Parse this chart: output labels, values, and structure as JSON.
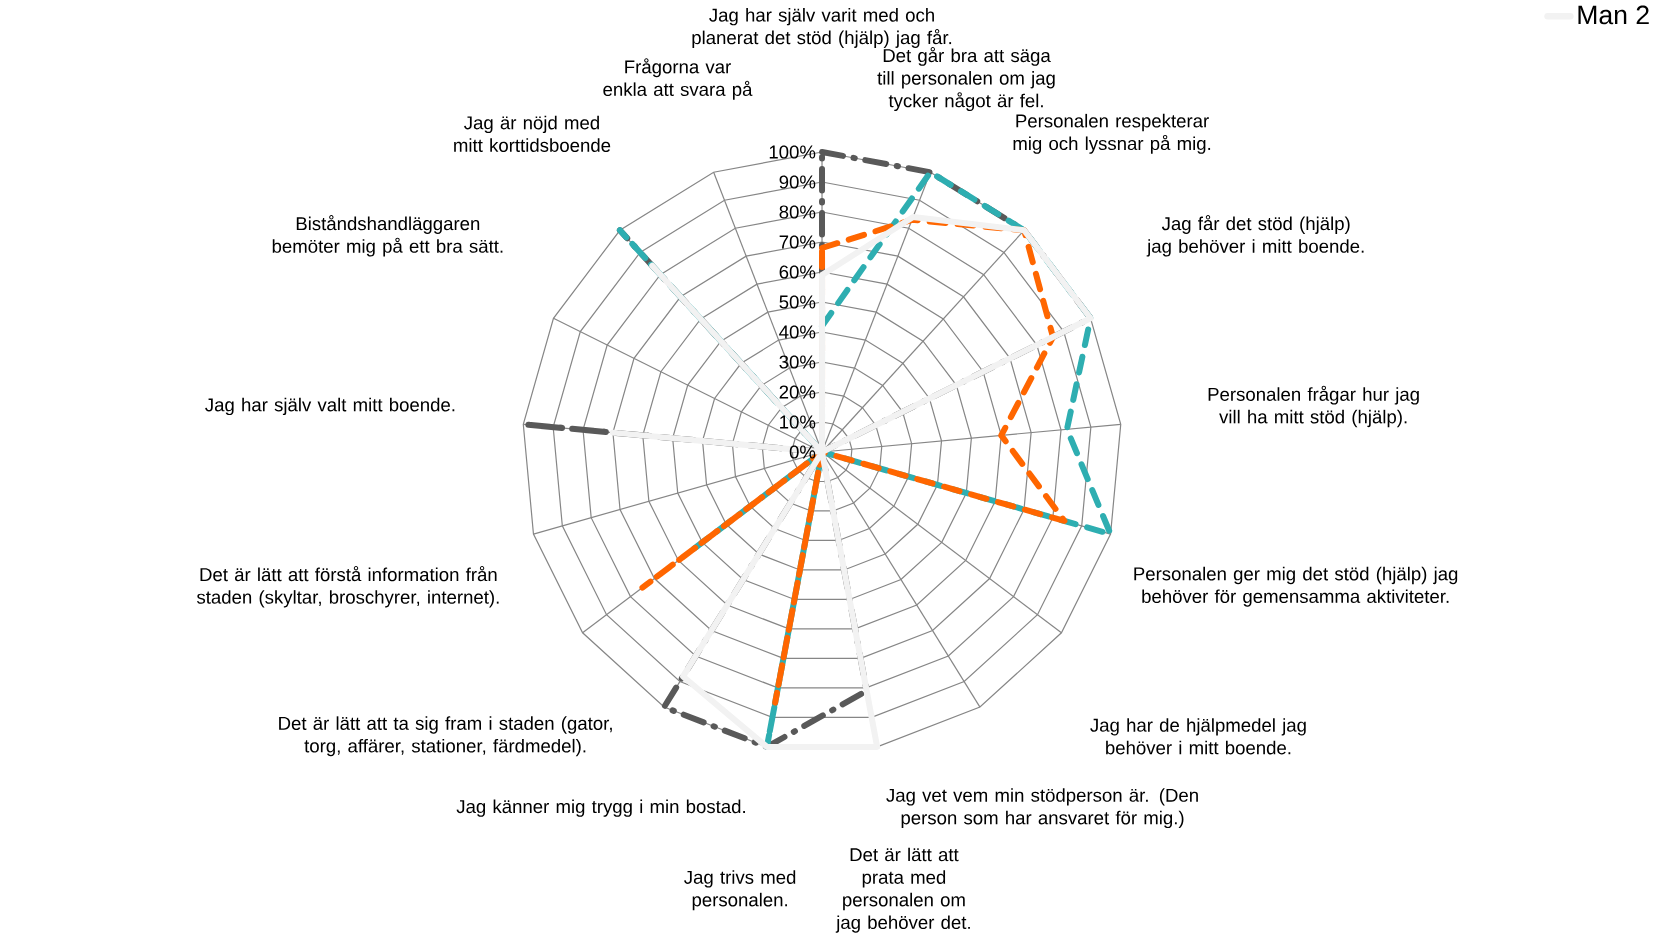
{
  "chart_data": {
    "type": "radar",
    "categories": [
      "Jag har själv varit med och planerat det stöd (hjälp) jag får.",
      "Det går bra att säga till personalen om jag tycker något är fel.",
      "Personalen respekterar mig och lyssnar på mig.",
      "Jag får det stöd (hjälp) jag behöver i mitt boende.",
      "Personalen frågar hur jag vill ha mitt stöd (hjälp).",
      "Personalen ger mig det stöd (hjälp) jag behöver för gemensamma aktiviteter.",
      "Jag har de hjälpmedel jag behöver i mitt boende.",
      "Jag vet vem min stödperson är. (Den person som har ansvaret för mig.)",
      "Det är lätt att prata med personalen om jag behöver det.",
      "Jag trivs med personalen.",
      "Jag känner mig trygg i min bostad.",
      "Det är lätt att ta sig fram i staden (gator, torg, affärer, stationer, färdmedel).",
      "Det är lätt att förstå information från staden (skyltar, broschyrer, internet).",
      "Jag har själv valt mitt boende.",
      "Biståndshandläggaren bemöter mig på ett bra sätt.",
      "Jag är nöjd med mitt korttidsboende",
      "Frågorna var enkla att svara på"
    ],
    "series": [
      {
        "color": "#595959",
        "line_style": "dashdot",
        "values": [
          100,
          100,
          100,
          100,
          0,
          0,
          0,
          0,
          81,
          100,
          100,
          0,
          0,
          100,
          0,
          100,
          0
        ]
      },
      {
        "color": "#2eaeb1",
        "line_style": "dashed",
        "values": [
          42,
          100,
          100,
          100,
          82,
          100,
          0,
          0,
          0,
          100,
          0,
          55,
          0,
          0,
          0,
          100,
          0
        ]
      },
      {
        "color": "#ff6600",
        "line_style": "dashed",
        "values": [
          68,
          83,
          100,
          86,
          60,
          84,
          0,
          0,
          0,
          85,
          0,
          75,
          0,
          0,
          0,
          0,
          0
        ]
      },
      {
        "name": "Man 2",
        "color": "#f2f2f2",
        "line_style": "solid",
        "values": [
          59,
          84,
          100,
          100,
          0,
          0,
          0,
          0,
          100,
          100,
          88,
          0,
          0,
          70,
          0,
          84,
          0
        ]
      }
    ],
    "ylim": [
      0,
      100
    ],
    "yticks": [
      {
        "value": 0,
        "label": "0%"
      },
      {
        "value": 10,
        "label": "10%"
      },
      {
        "value": 20,
        "label": "20%"
      },
      {
        "value": 30,
        "label": "30%"
      },
      {
        "value": 40,
        "label": "40%"
      },
      {
        "value": 50,
        "label": "50%"
      },
      {
        "value": 60,
        "label": "60%"
      },
      {
        "value": 70,
        "label": "70%"
      },
      {
        "value": 80,
        "label": "80%"
      },
      {
        "value": 90,
        "label": "90%"
      },
      {
        "value": 100,
        "label": "100%"
      }
    ],
    "grid": true,
    "legend": "top right",
    "marker": "none"
  }
}
